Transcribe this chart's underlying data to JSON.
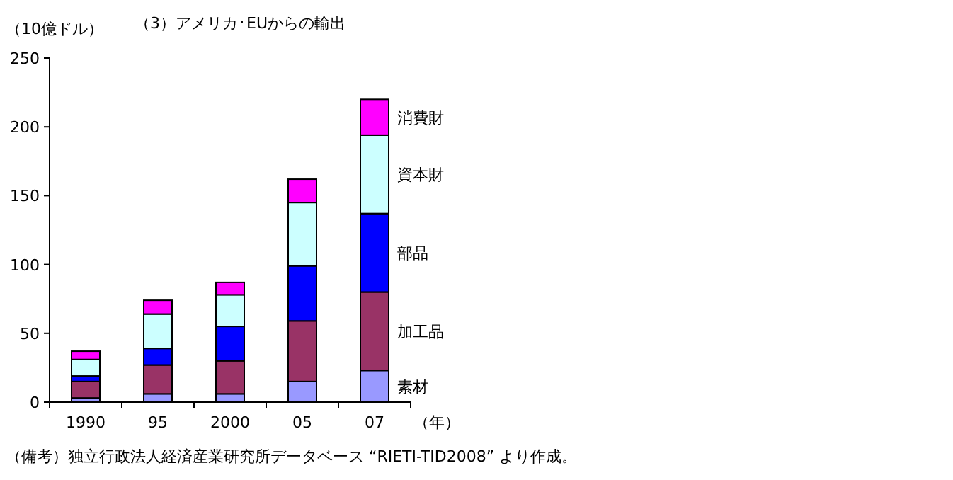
{
  "chart_data": {
    "type": "bar",
    "stacked": true,
    "title": "（3）アメリカ･EUからの輸出",
    "ylabel": "（10億ドル）",
    "xlabel": "（年）",
    "categories": [
      "1990",
      "95",
      "2000",
      "05",
      "07"
    ],
    "series": [
      {
        "name": "素材",
        "color": "#9999ff",
        "values": [
          3,
          6,
          6,
          15,
          23
        ]
      },
      {
        "name": "加工品",
        "color": "#993366",
        "values": [
          12,
          21,
          24,
          44,
          57
        ]
      },
      {
        "name": "部品",
        "color": "#0000ff",
        "values": [
          4,
          12,
          25,
          40,
          57
        ]
      },
      {
        "name": "資本財",
        "color": "#ccffff",
        "values": [
          12,
          25,
          23,
          46,
          57
        ]
      },
      {
        "name": "消費財",
        "color": "#ff00ff",
        "values": [
          6,
          10,
          9,
          17,
          26
        ]
      }
    ],
    "ylim": [
      0,
      250
    ],
    "yticks": [
      0,
      50,
      100,
      150,
      200,
      250
    ],
    "grid": false,
    "annotations": [
      "（備考）独立行政法人経済産業研究所データベース “RIETI-TID2008” より作成。"
    ]
  }
}
